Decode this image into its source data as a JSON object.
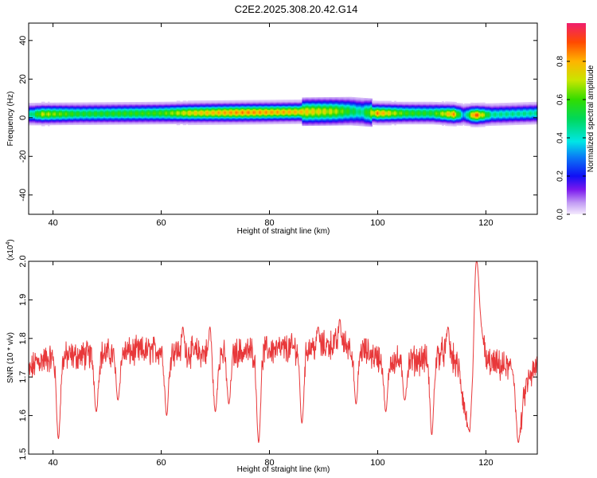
{
  "title": "C2E2.2025.308.20.42.G14",
  "colors": {
    "line": "#e8383a",
    "axis": "#000000"
  },
  "chart_data": [
    {
      "type": "heatmap",
      "xlabel": "Height of straight line (km)",
      "ylabel": "Frequency (Hz)",
      "xlim": [
        35.5,
        129.5
      ],
      "ylim": [
        -50,
        49
      ],
      "xticks": [
        40,
        60,
        80,
        100,
        120
      ],
      "yticks": [
        -40,
        -20,
        0,
        20,
        40
      ],
      "colorbar": {
        "label": "Normalized spectral amplitude",
        "range": [
          0,
          1
        ],
        "ticks": [
          0.0,
          0.2,
          0.4,
          0.6,
          0.8
        ],
        "tick_labels": [
          "0.0",
          "0.2",
          "0.4",
          "0.6",
          "0.8"
        ],
        "colormap": "rainbow (violet to red)"
      },
      "band": {
        "center_hz": [
          [
            36,
            2
          ],
          [
            60,
            2.5
          ],
          [
            80,
            3
          ],
          [
            95,
            3.5
          ],
          [
            100,
            2.5
          ],
          [
            110,
            2.5
          ],
          [
            118,
            1.5
          ],
          [
            129.5,
            2.5
          ]
        ],
        "peak_amplitude": [
          [
            36,
            0.45
          ],
          [
            38,
            0.7
          ],
          [
            45,
            0.55
          ],
          [
            60,
            0.6
          ],
          [
            65,
            0.75
          ],
          [
            75,
            0.85
          ],
          [
            85,
            0.8
          ],
          [
            92,
            0.7
          ],
          [
            97,
            0.45
          ],
          [
            100,
            0.85
          ],
          [
            105,
            0.6
          ],
          [
            110,
            0.55
          ],
          [
            114,
            0.85
          ],
          [
            116,
            0.3
          ],
          [
            118,
            0.95
          ],
          [
            121,
            0.45
          ],
          [
            129.5,
            0.45
          ]
        ]
      }
    },
    {
      "type": "line",
      "xlabel": "Height of straight line (km)",
      "ylabel": "SNR (10 * v/v)",
      "multiplier": "(x10",
      "multiplier_exp": "4",
      "xlim": [
        35.5,
        129.5
      ],
      "ylim": [
        1.5,
        2.0
      ],
      "xticks": [
        40,
        60,
        80,
        100,
        120
      ],
      "yticks": [
        1.5,
        1.6,
        1.7,
        1.8,
        1.9,
        2.0
      ],
      "ytick_labels": [
        "1.5",
        "1.6",
        "1.7",
        "1.8",
        "1.9",
        "2.0"
      ],
      "trend": [
        [
          35.5,
          1.71
        ],
        [
          37,
          1.74
        ],
        [
          40,
          1.75
        ],
        [
          50,
          1.76
        ],
        [
          60,
          1.77
        ],
        [
          70,
          1.76
        ],
        [
          80,
          1.77
        ],
        [
          90,
          1.78
        ],
        [
          93,
          1.79
        ],
        [
          97,
          1.77
        ],
        [
          100,
          1.75
        ],
        [
          105,
          1.74
        ],
        [
          110,
          1.75
        ],
        [
          113,
          1.77
        ],
        [
          115,
          1.72
        ],
        [
          116,
          1.62
        ],
        [
          117,
          1.55
        ],
        [
          117.6,
          1.7
        ],
        [
          118.2,
          1.95
        ],
        [
          119,
          1.85
        ],
        [
          120,
          1.74
        ],
        [
          122,
          1.73
        ],
        [
          125,
          1.72
        ],
        [
          126.5,
          1.6
        ],
        [
          127.5,
          1.68
        ],
        [
          129.5,
          1.73
        ]
      ],
      "dips": [
        [
          41,
          1.54
        ],
        [
          48,
          1.61
        ],
        [
          52,
          1.64
        ],
        [
          61,
          1.6
        ],
        [
          70,
          1.61
        ],
        [
          72.5,
          1.63
        ],
        [
          78,
          1.53
        ],
        [
          86,
          1.58
        ],
        [
          96,
          1.63
        ],
        [
          101.5,
          1.61
        ],
        [
          105,
          1.64
        ],
        [
          110,
          1.55
        ],
        [
          126,
          1.53
        ]
      ],
      "spikes": [
        [
          64,
          1.83
        ],
        [
          69,
          1.83
        ],
        [
          89,
          1.83
        ],
        [
          93,
          1.85
        ],
        [
          113,
          1.83
        ],
        [
          118.3,
          2.0
        ]
      ]
    }
  ]
}
